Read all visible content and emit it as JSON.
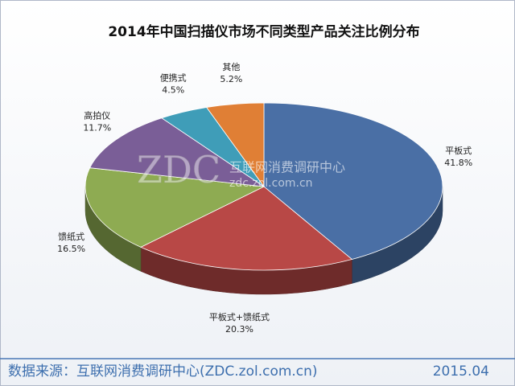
{
  "chart_data": {
    "type": "pie3d",
    "title": "2014年中国扫描仪市场不同类型产品关注比例分布",
    "categories": [
      "平板式",
      "平板式+馈纸式",
      "馈纸式",
      "高拍仪",
      "便携式",
      "其他"
    ],
    "values": [
      41.8,
      20.3,
      16.5,
      11.7,
      4.5,
      5.2
    ],
    "value_labels": [
      "41.8%",
      "20.3%",
      "16.5%",
      "11.7%",
      "4.5%",
      "5.2%"
    ],
    "colors": [
      "#4a6fa5",
      "#b84846",
      "#8eab52",
      "#7a5e97",
      "#3f9db8",
      "#e07f35"
    ],
    "watermark": {
      "logo": "ZDC",
      "name": "互联网消费调研中心",
      "url": "zdc.zol.com.cn"
    },
    "source": "数据来源：互联网消费调研中心(ZDC.zol.com.cn)",
    "date": "2015.04"
  }
}
